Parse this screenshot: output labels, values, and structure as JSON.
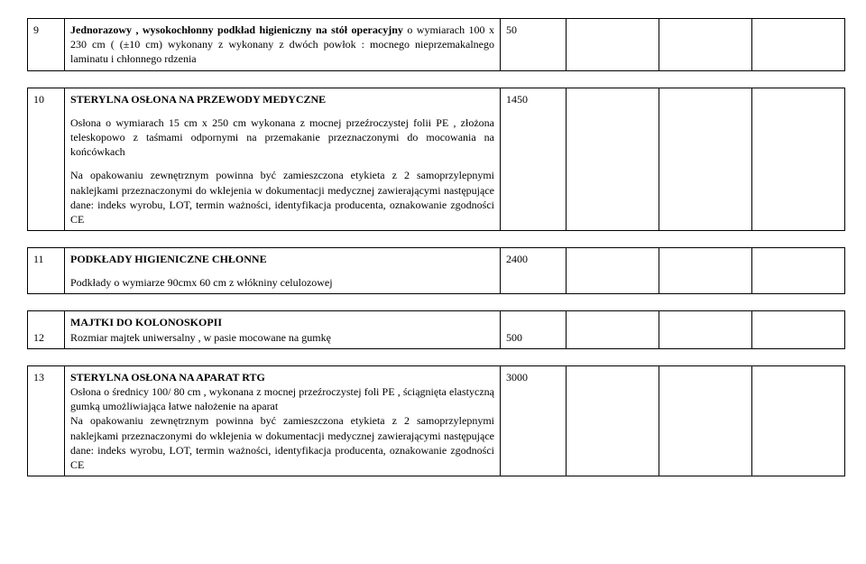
{
  "rows": [
    {
      "num": "9",
      "qty": "50",
      "title": "Jednorazowy , wysokochłonny podkład higieniczny na stół  operacyjny",
      "body": " o wymiarach 100 x 230 cm ( (±10 cm) wykonany z wykonany z dwóch powłok : mocnego nieprzemakalnego laminatu i chłonnego rdzenia"
    },
    {
      "num": "10",
      "qty": "1450",
      "title": "STERYLNA OSŁONA NA PRZEWODY MEDYCZNE",
      "para1": "Osłona o wymiarach 15 cm x 250 cm wykonana z mocnej przeźroczystej folii PE  , złożona teleskopowo z taśmami odpornymi na przemakanie przeznaczonymi do mocowania na końcówkach",
      "para2": "Na opakowaniu zewnętrznym powinna być zamieszczona etykieta z 2 samoprzylepnymi naklejkami przeznaczonymi do wklejenia w dokumentacji medycznej zawierającymi następujące dane: indeks wyrobu, LOT, termin ważności, identyfikacja producenta, oznakowanie zgodności CE"
    },
    {
      "num": "11",
      "qty": "2400",
      "title": "PODKŁADY HIGIENICZNE CHŁONNE",
      "para1": "Podkłady o wymiarze 90cmx 60 cm z włókniny celulozowej"
    },
    {
      "num": "12",
      "qty": "500",
      "title": "MAJTKI DO KOLONOSKOPII",
      "para1": "Rozmiar majtek uniwersalny , w pasie mocowane na gumkę"
    },
    {
      "num": "13",
      "qty": "3000",
      "title": "STERYLNA OSŁONA NA  APARAT RTG",
      "para1": "Osłona o średnicy 100/ 80 cm , wykonana z mocnej przeźroczystej foli PE , ściągnięta elastyczną gumką umożliwiająca łatwe nałożenie na aparat",
      "para2": "Na opakowaniu zewnętrznym powinna być zamieszczona etykieta z 2 samoprzylepnymi naklejkami przeznaczonymi do wklejenia w dokumentacji medycznej zawierającymi następujące dane: indeks wyrobu, LOT, termin ważności, identyfikacja producenta, oznakowanie zgodności CE"
    }
  ]
}
